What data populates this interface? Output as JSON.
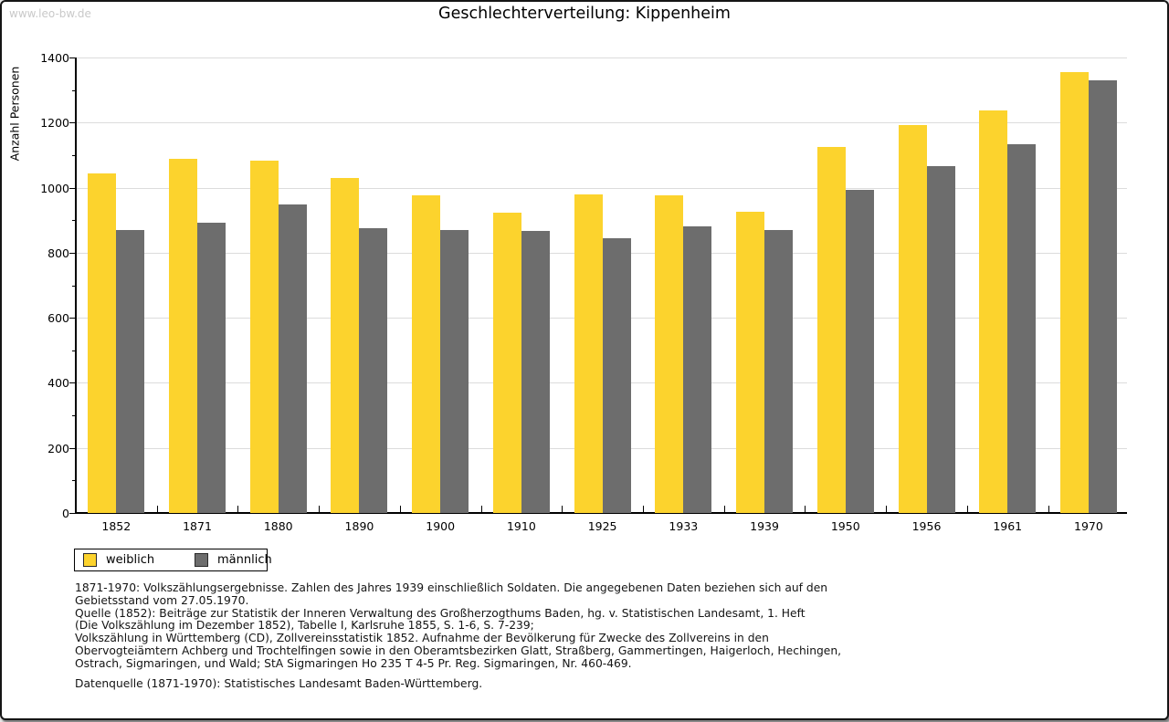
{
  "watermark": "www.leo-bw.de",
  "title": "Geschlechterverteilung: Kippenheim",
  "chart_data": {
    "type": "bar",
    "title": "Geschlechterverteilung: Kippenheim",
    "xlabel": "",
    "ylabel": "Anzahl Personen",
    "ylim": [
      0,
      1400
    ],
    "ytick_step": 200,
    "yminor_step": 100,
    "grid": true,
    "legend_position": "bottom-left",
    "categories": [
      "1852",
      "1871",
      "1880",
      "1890",
      "1900",
      "1910",
      "1925",
      "1933",
      "1939",
      "1950",
      "1956",
      "1961",
      "1970"
    ],
    "series": [
      {
        "name": "weiblich",
        "color": "#FCD32D",
        "values": [
          1043,
          1089,
          1084,
          1030,
          976,
          923,
          979,
          976,
          925,
          1124,
          1193,
          1237,
          1355
        ]
      },
      {
        "name": "männlich",
        "color": "#6D6D6D",
        "values": [
          871,
          893,
          947,
          874,
          870,
          866,
          845,
          881,
          870,
          994,
          1066,
          1134,
          1330
        ]
      }
    ]
  },
  "colors": {
    "female": "#FCD32D",
    "male": "#6D6D6D",
    "gridline": "#DCDCDC",
    "axis": "#000000",
    "watermark": "#C9C9C9",
    "frame_border": "#151515"
  },
  "footnotes": [
    "1871-1970: Volkszählungsergebnisse. Zahlen des Jahres 1939 einschließlich Soldaten. Die angegebenen Daten beziehen sich auf den",
    "Gebietsstand vom 27.05.1970.",
    "Quelle (1852): Beiträge zur Statistik der Inneren Verwaltung des Großherzogthums Baden, hg. v. Statistischen Landesamt, 1. Heft",
    "(Die Volkszählung im Dezember 1852), Tabelle I, Karlsruhe 1855, S. 1-6, S. 7-239;",
    "Volkszählung in Württemberg (CD), Zollvereinsstatistik 1852. Aufnahme der Bevölkerung für Zwecke des Zollvereins in den",
    "Obervogteiämtern Achberg und Trochtelfingen sowie in den Oberamtsbezirken Glatt, Straßberg, Gammertingen, Haigerloch, Hechingen,",
    "Ostrach, Sigmaringen, und Wald; StA Sigmaringen Ho 235 T 4-5 Pr. Reg. Sigmaringen, Nr. 460-469."
  ],
  "datasource_line": "Datenquelle (1871-1970): Statistisches Landesamt Baden-Württemberg."
}
